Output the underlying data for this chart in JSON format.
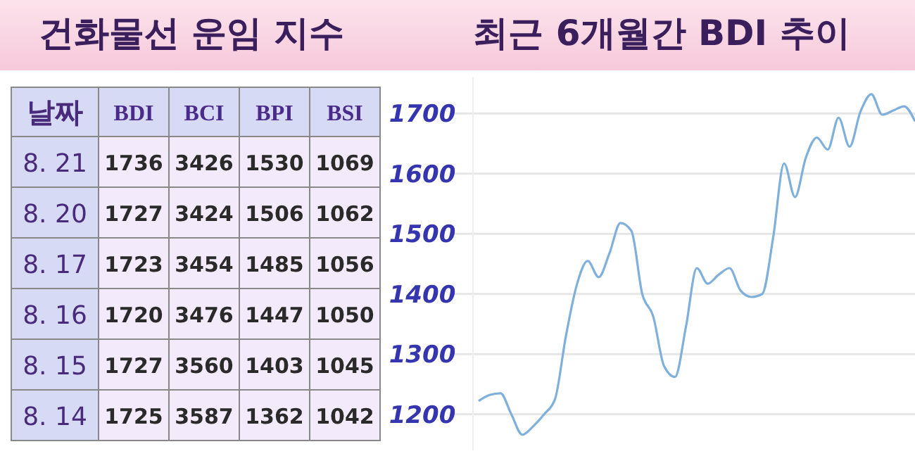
{
  "chart_data": [
    {
      "type": "heatmap",
      "title": "건화물선 운임 지수",
      "ylabel": "날짜",
      "categories": [
        "BDI",
        "BCI",
        "BPI",
        "BSI"
      ],
      "y_categories": [
        "8. 21",
        "8. 20",
        "8. 17",
        "8. 16",
        "8. 15",
        "8. 14"
      ],
      "cells": [
        [
          1736,
          3426,
          1530,
          1069
        ],
        [
          1727,
          3424,
          1506,
          1062
        ],
        [
          1723,
          3454,
          1485,
          1056
        ],
        [
          1720,
          3476,
          1447,
          1050
        ],
        [
          1727,
          3560,
          1403,
          1045
        ],
        [
          1725,
          3587,
          1362,
          1042
        ]
      ],
      "data_labels": true
    },
    {
      "type": "line",
      "title": "최근 6개월간 BDI 추이",
      "categories": [
        null,
        null,
        null,
        null,
        null,
        null,
        null,
        null,
        null,
        null,
        null,
        null,
        null,
        null,
        null,
        null,
        null,
        null,
        null,
        null,
        null,
        null,
        null,
        null,
        null,
        null,
        null,
        null,
        null,
        null,
        null,
        null,
        null,
        null,
        null,
        null,
        null,
        null,
        null,
        null,
        null
      ],
      "series": [
        {
          "color": "#7fb0dc",
          "values": [
            1222,
            1232,
            1235,
            1200,
            1166,
            1180,
            1200,
            1225,
            1330,
            1415,
            1455,
            1428,
            1468,
            1518,
            1505,
            1400,
            1363,
            1280,
            1262,
            1345,
            1443,
            1417,
            1432,
            1443,
            1406,
            1395,
            1400,
            1494,
            1617,
            1561,
            1627,
            1660,
            1640,
            1693,
            1645,
            1703,
            1732,
            1698,
            1705,
            1712,
            1687
          ]
        }
      ],
      "ylim": [
        1140,
        1760
      ],
      "yticks": [
        1200,
        1300,
        1400,
        1500,
        1600,
        1700
      ],
      "grid": "y",
      "tick_labels": "y"
    }
  ]
}
